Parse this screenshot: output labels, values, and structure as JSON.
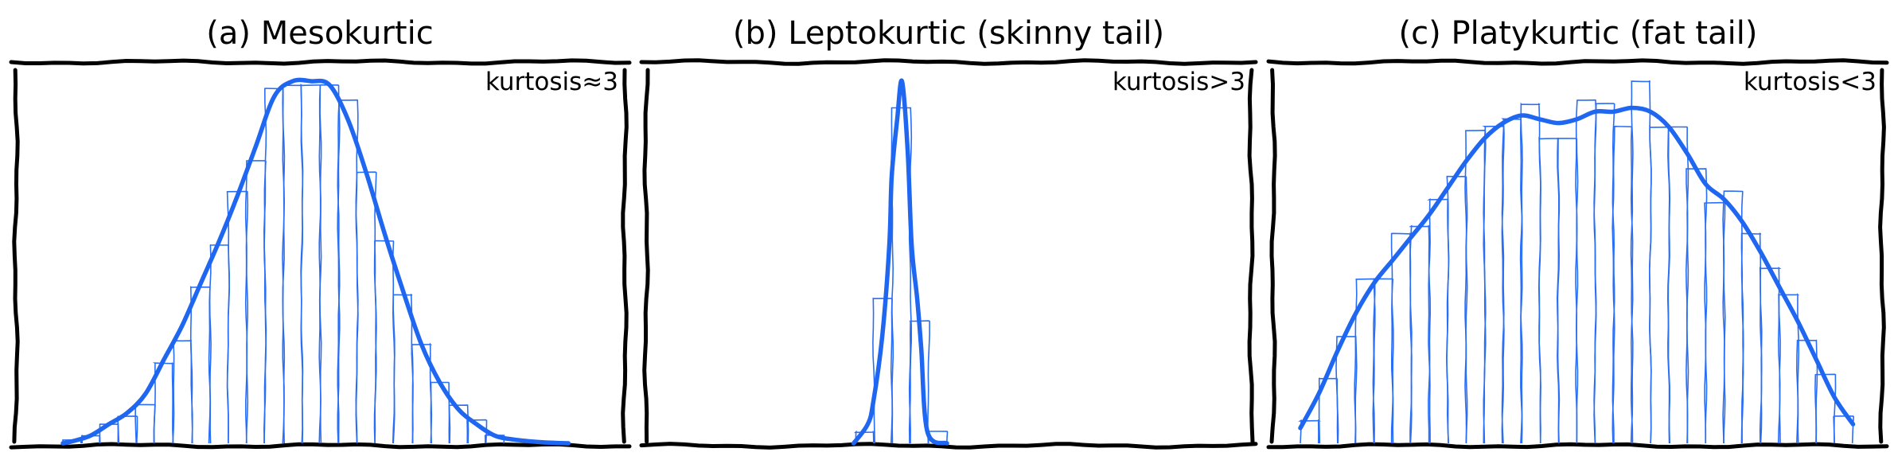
{
  "chart_data": [
    {
      "type": "bar",
      "title": "(a) Mesokurtic",
      "annotation": "kurtosis≈3",
      "annotation_position": "top-right",
      "ylim": [
        0,
        100
      ],
      "grid": false,
      "axes_ticks": false,
      "colors": {
        "bars": "#2a6ef5",
        "kde": "#1f66f0"
      },
      "values": [
        1,
        2,
        5,
        7,
        10,
        21,
        27,
        41,
        52,
        66,
        74,
        93,
        94,
        94,
        94,
        90,
        71,
        53,
        39,
        26,
        16,
        10,
        6,
        2
      ],
      "kde": {
        "x": [
          -0.5,
          0,
          1,
          2,
          3,
          4,
          5,
          6,
          7,
          8,
          9,
          10,
          11,
          12,
          13,
          14,
          15,
          16,
          17,
          18,
          19,
          20,
          21,
          22,
          23,
          24,
          25.5,
          27
        ],
        "y": [
          0,
          0.5,
          2,
          5,
          8,
          13,
          22,
          31,
          42,
          53,
          65,
          78,
          91,
          95,
          95,
          94,
          85,
          71,
          55,
          40,
          26,
          16,
          9,
          5,
          2,
          1,
          0.3,
          0
        ]
      }
    },
    {
      "type": "bar",
      "title": "(b) Leptokurtic (skinny tail)",
      "annotation": "kurtosis>3",
      "annotation_position": "top-right",
      "ylim": [
        0,
        100
      ],
      "grid": false,
      "axes_ticks": false,
      "colors": {
        "bars": "#2a6ef5",
        "kde": "#1f66f0"
      },
      "values": [
        3,
        38,
        88,
        32,
        3
      ],
      "kde": {
        "x": [
          -0.6,
          0.17,
          0.48,
          0.96,
          1.35,
          1.48,
          1.78,
          2.04,
          2.35,
          2.57,
          2.87,
          3.09,
          3.43,
          4.5
        ],
        "y": [
          0,
          5,
          11,
          28,
          52,
          70,
          85,
          95,
          77,
          52,
          38,
          25,
          3,
          0
        ]
      }
    },
    {
      "type": "bar",
      "title": "(c) Platykurtic (fat tail)",
      "annotation": "kurtosis<3",
      "annotation_position": "top-right",
      "ylim": [
        0,
        100
      ],
      "grid": false,
      "axes_ticks": false,
      "colors": {
        "bars": "#2a6ef5",
        "kde": "#1f66f0"
      },
      "values": [
        6,
        17,
        28,
        43,
        43,
        55,
        57,
        64,
        70,
        82,
        83,
        85,
        89,
        80,
        80,
        90,
        89,
        83,
        95,
        83,
        83,
        72,
        63,
        66,
        55,
        46,
        39,
        27,
        18,
        7
      ],
      "kde": {
        "x": [
          -0.5,
          0.5,
          1.5,
          2.5,
          3.5,
          4.5,
          5.5,
          6.5,
          7.5,
          8.5,
          9.5,
          10.5,
          11.5,
          12.5,
          13.5,
          14.5,
          15.5,
          16.5,
          17.5,
          18.5,
          19.5,
          20.5,
          21.5,
          22.5,
          23.5,
          24.5,
          25.5,
          26.5,
          27.5,
          28.5,
          29.5
        ],
        "y": [
          4,
          13,
          24,
          34,
          42,
          48,
          54,
          60,
          67,
          74,
          80,
          84,
          86,
          85,
          84,
          85,
          87,
          87,
          88,
          87,
          83,
          76,
          68,
          64,
          58,
          50,
          41,
          32,
          22,
          12,
          5
        ]
      }
    }
  ]
}
